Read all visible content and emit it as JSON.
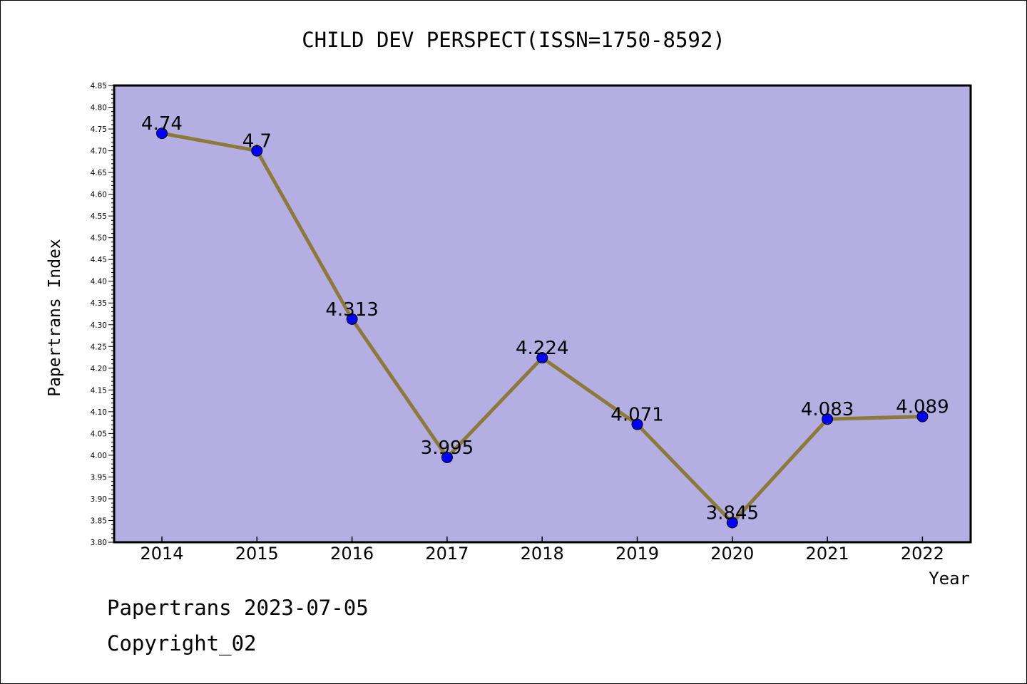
{
  "chart_data": {
    "type": "line",
    "title": "CHILD DEV PERSPECT(ISSN=1750-8592)",
    "xlabel": "Year",
    "ylabel": "Papertrans Index",
    "x": [
      "2014",
      "2015",
      "2016",
      "2017",
      "2018",
      "2019",
      "2020",
      "2021",
      "2022"
    ],
    "values": [
      4.74,
      4.7,
      4.313,
      3.995,
      4.224,
      4.071,
      3.845,
      4.083,
      4.089
    ],
    "data_labels": [
      "4.74",
      "4.7",
      "4.313",
      "3.995",
      "4.224",
      "4.071",
      "3.845",
      "4.083",
      "4.089"
    ],
    "ylim": [
      3.8,
      4.85
    ],
    "ytick_step": 0.05,
    "ytick_labels": [
      "3.80",
      "3.85",
      "3.90",
      "3.95",
      "4.00",
      "4.05",
      "4.10",
      "4.15",
      "4.20",
      "4.25",
      "4.30",
      "4.35",
      "4.40",
      "4.45",
      "4.50",
      "4.55",
      "4.60",
      "4.65",
      "4.70",
      "4.75",
      "4.80",
      "4.85"
    ],
    "grid": false,
    "colors": {
      "plot_background": "#b4aee2",
      "line": "#8b7a3a",
      "marker": "#0000ff"
    }
  },
  "footer": {
    "line1": "Papertrans 2023-07-05",
    "line2": "Copyright_02"
  }
}
